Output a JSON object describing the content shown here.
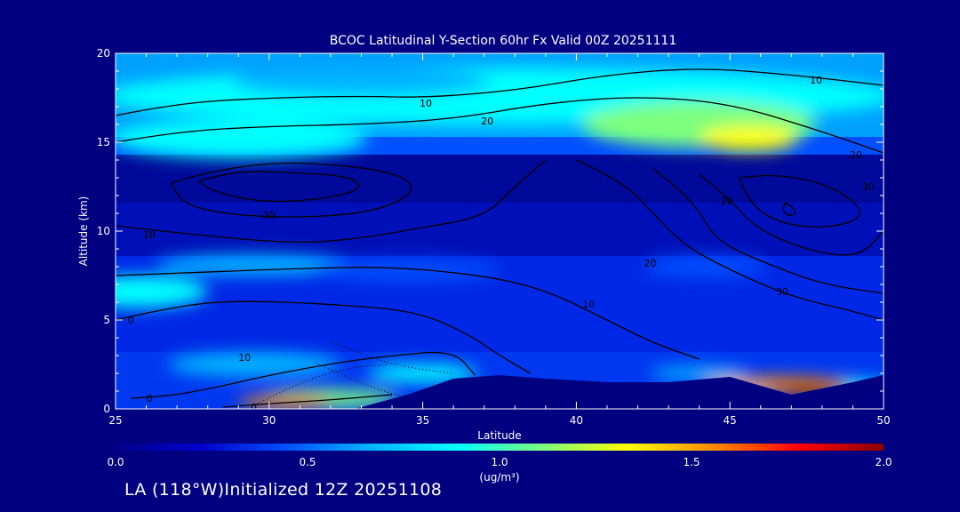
{
  "chart_data": {
    "type": "heatmap",
    "title": "BCOC Latitudinal Y-Section 60hr  Fx Valid 00Z 20251111",
    "xlabel": "Latitude",
    "ylabel": "Altitude (km)",
    "xlim": [
      25,
      50
    ],
    "ylim": [
      0,
      20
    ],
    "x_ticks": [
      25,
      30,
      35,
      40,
      45,
      50
    ],
    "y_ticks": [
      0,
      5,
      10,
      15,
      20
    ],
    "colorbar": {
      "min": 0.0,
      "max": 2.0,
      "ticks": [
        "0.0",
        "0.5",
        "1.0",
        "1.5",
        "2.0"
      ],
      "unit_label": "(ug/m³)",
      "colors": [
        "#00008a",
        "#0000cd",
        "#0050ff",
        "#00b4ff",
        "#00ffff",
        "#7dff7d",
        "#ffff00",
        "#ff8c00",
        "#ff0000",
        "#8b0000"
      ]
    },
    "contour_labels": [
      {
        "text": "10",
        "lat": 35.1,
        "alt": 17.2
      },
      {
        "text": "20",
        "lat": 37.1,
        "alt": 16.2
      },
      {
        "text": "10",
        "lat": 47.8,
        "alt": 18.5
      },
      {
        "text": "20",
        "lat": 49.1,
        "alt": 14.3
      },
      {
        "text": "30",
        "lat": 49.5,
        "alt": 12.5
      },
      {
        "text": "30",
        "lat": 30.0,
        "alt": 10.9
      },
      {
        "text": "10",
        "lat": 26.1,
        "alt": 9.8
      },
      {
        "text": "20",
        "lat": 44.9,
        "alt": 11.7
      },
      {
        "text": "20",
        "lat": 42.4,
        "alt": 8.2
      },
      {
        "text": "30",
        "lat": 46.7,
        "alt": 6.6
      },
      {
        "text": "10",
        "lat": 40.4,
        "alt": 5.9
      },
      {
        "text": "0",
        "lat": 25.5,
        "alt": 5.0
      },
      {
        "text": "10",
        "lat": 29.2,
        "alt": 2.9
      },
      {
        "text": "0",
        "lat": 26.1,
        "alt": 0.6
      },
      {
        "text": "0",
        "lat": 29.5,
        "alt": 0.1
      }
    ],
    "contours": [
      [
        [
          25,
          16.5
        ],
        [
          27,
          17.2
        ],
        [
          30,
          17.5
        ],
        [
          33,
          17.6
        ],
        [
          35,
          17.5
        ],
        [
          38,
          17.9
        ],
        [
          41,
          18.8
        ],
        [
          44,
          19.2
        ],
        [
          47,
          18.8
        ],
        [
          50,
          18.2
        ]
      ],
      [
        [
          25,
          15.0
        ],
        [
          27,
          15.6
        ],
        [
          30,
          15.9
        ],
        [
          33,
          16.0
        ],
        [
          36,
          16.3
        ],
        [
          39,
          17.2
        ],
        [
          42,
          17.6
        ],
        [
          45,
          17.2
        ],
        [
          48,
          15.6
        ],
        [
          50,
          14.4
        ]
      ],
      [
        [
          27.7,
          12.8
        ],
        [
          28.8,
          13.4
        ],
        [
          30.7,
          13.3
        ],
        [
          32.6,
          13.1
        ],
        [
          33.1,
          12.4
        ],
        [
          31.8,
          11.8
        ],
        [
          29.8,
          11.6
        ],
        [
          28.2,
          12.2
        ],
        [
          27.7,
          12.8
        ]
      ],
      [
        [
          26.8,
          12.7
        ],
        [
          29.2,
          14.0
        ],
        [
          33.5,
          13.6
        ],
        [
          35.0,
          12.5
        ],
        [
          33.5,
          11.0
        ],
        [
          30.0,
          10.7
        ],
        [
          27.3,
          11.3
        ],
        [
          26.8,
          12.7
        ]
      ],
      [
        [
          25,
          10.3
        ],
        [
          28,
          9.7
        ],
        [
          31,
          9.3
        ],
        [
          33,
          9.6
        ],
        [
          35,
          10.2
        ],
        [
          37,
          10.8
        ],
        [
          38,
          12.5
        ],
        [
          39,
          14.0
        ]
      ],
      [
        [
          25,
          7.5
        ],
        [
          28,
          7.7
        ],
        [
          31,
          7.9
        ],
        [
          34,
          8.0
        ],
        [
          37,
          7.5
        ],
        [
          39,
          6.7
        ],
        [
          41,
          5.0
        ],
        [
          42.5,
          3.7
        ],
        [
          44,
          2.8
        ]
      ],
      [
        [
          25,
          5.0
        ],
        [
          27,
          5.8
        ],
        [
          29,
          6.1
        ],
        [
          32,
          5.9
        ],
        [
          34.8,
          5.5
        ],
        [
          36.5,
          4.2
        ],
        [
          37.5,
          3.0
        ],
        [
          38.5,
          2.0
        ]
      ],
      [
        [
          40,
          14.0
        ],
        [
          41.5,
          12.8
        ],
        [
          42.5,
          11.0
        ],
        [
          43.5,
          9.2
        ],
        [
          45.0,
          7.8
        ],
        [
          47.0,
          6.3
        ],
        [
          49.0,
          5.5
        ],
        [
          50,
          5.0
        ]
      ],
      [
        [
          42.5,
          13.5
        ],
        [
          43.8,
          11.8
        ],
        [
          44.5,
          9.5
        ],
        [
          46.0,
          8.3
        ],
        [
          48.0,
          7.0
        ],
        [
          50,
          6.5
        ]
      ],
      [
        [
          44.0,
          13.2
        ],
        [
          45.0,
          11.8
        ],
        [
          45.8,
          10.2
        ],
        [
          47.5,
          8.9
        ],
        [
          49.2,
          8.5
        ],
        [
          50,
          10.0
        ]
      ],
      [
        [
          45.3,
          13.0
        ],
        [
          45.6,
          11.5
        ],
        [
          46.8,
          10.3
        ],
        [
          48.5,
          10.2
        ],
        [
          49.5,
          11.0
        ],
        [
          48.3,
          12.6
        ],
        [
          46.5,
          13.2
        ],
        [
          45.3,
          13.0
        ]
      ],
      [
        [
          46.8,
          11.6
        ],
        [
          47.2,
          11.2
        ],
        [
          47.0,
          10.8
        ],
        [
          46.7,
          11.1
        ],
        [
          46.8,
          11.6
        ]
      ],
      [
        [
          25.5,
          0.6
        ],
        [
          26.6,
          0.7
        ],
        [
          28.0,
          1.1
        ],
        [
          30.0,
          1.9
        ],
        [
          32.2,
          2.6
        ],
        [
          34.0,
          3.0
        ],
        [
          36.0,
          3.3
        ],
        [
          36.7,
          1.9
        ]
      ],
      [
        [
          28.5,
          0.1
        ],
        [
          30.0,
          0.3
        ],
        [
          32.0,
          0.5
        ],
        [
          34.0,
          0.8
        ]
      ]
    ],
    "dotted_contours": [
      [
        [
          29.5,
          0.2
        ],
        [
          31.0,
          1.5
        ],
        [
          32.5,
          2.3
        ],
        [
          33.8,
          2.5
        ]
      ],
      [
        [
          31.5,
          2.6
        ],
        [
          33.0,
          1.4
        ],
        [
          34.5,
          0.6
        ]
      ],
      [
        [
          32.0,
          3.8
        ],
        [
          33.5,
          2.7
        ],
        [
          35.0,
          2.2
        ],
        [
          36.0,
          2.0
        ]
      ]
    ],
    "terrain_km": [
      [
        25,
        0
      ],
      [
        32.8,
        0
      ],
      [
        34.5,
        0.8
      ],
      [
        36,
        1.7
      ],
      [
        37.5,
        1.9
      ],
      [
        39,
        1.7
      ],
      [
        41,
        1.5
      ],
      [
        43,
        1.5
      ],
      [
        45,
        1.8
      ],
      [
        47,
        0.8
      ],
      [
        49,
        1.5
      ],
      [
        50,
        1.9
      ],
      [
        50,
        0
      ]
    ],
    "blobs": [
      {
        "lat": 37.5,
        "alt": 17.6,
        "rx": 13.0,
        "ry": 1.6,
        "value": 0.95
      },
      {
        "lat": 44.0,
        "alt": 16.0,
        "rx": 3.8,
        "ry": 1.3,
        "value": 1.15
      },
      {
        "lat": 45.6,
        "alt": 15.2,
        "rx": 1.6,
        "ry": 0.7,
        "value": 1.32
      },
      {
        "lat": 29.0,
        "alt": 15.2,
        "rx": 4.2,
        "ry": 1.1,
        "value": 0.85
      },
      {
        "lat": 33.0,
        "alt": 18.4,
        "rx": 4.2,
        "ry": 0.8,
        "value": 0.72
      },
      {
        "lat": 25.8,
        "alt": 6.6,
        "rx": 2.2,
        "ry": 0.9,
        "value": 0.78
      },
      {
        "lat": 29.5,
        "alt": 8.1,
        "rx": 3.2,
        "ry": 0.6,
        "value": 0.62
      },
      {
        "lat": 34.5,
        "alt": 7.8,
        "rx": 3.0,
        "ry": 0.6,
        "value": 0.55
      },
      {
        "lat": 44.2,
        "alt": 8.0,
        "rx": 2.0,
        "ry": 0.6,
        "value": 0.55
      },
      {
        "lat": 29.5,
        "alt": 2.5,
        "rx": 2.8,
        "ry": 0.7,
        "value": 0.6
      },
      {
        "lat": 35.0,
        "alt": 2.0,
        "rx": 1.8,
        "ry": 0.5,
        "value": 0.85
      },
      {
        "lat": 32.0,
        "alt": 0.6,
        "rx": 2.2,
        "ry": 0.5,
        "value": 1.2
      },
      {
        "lat": 30.5,
        "alt": 0.4,
        "rx": 1.5,
        "ry": 0.35,
        "value": 1.5
      },
      {
        "lat": 44.0,
        "alt": 2.0,
        "rx": 1.6,
        "ry": 0.4,
        "value": 0.7
      },
      {
        "lat": 47.5,
        "alt": 1.2,
        "rx": 3.0,
        "ry": 0.5,
        "value": 0.95
      },
      {
        "lat": 46.5,
        "alt": 1.4,
        "rx": 2.4,
        "ry": 0.4,
        "value": 1.6
      },
      {
        "lat": 47.5,
        "alt": 1.0,
        "rx": 1.4,
        "ry": 0.3,
        "value": 1.95
      }
    ]
  },
  "footer": {
    "text": "LA (118°W)Initialized 12Z 20251108"
  }
}
